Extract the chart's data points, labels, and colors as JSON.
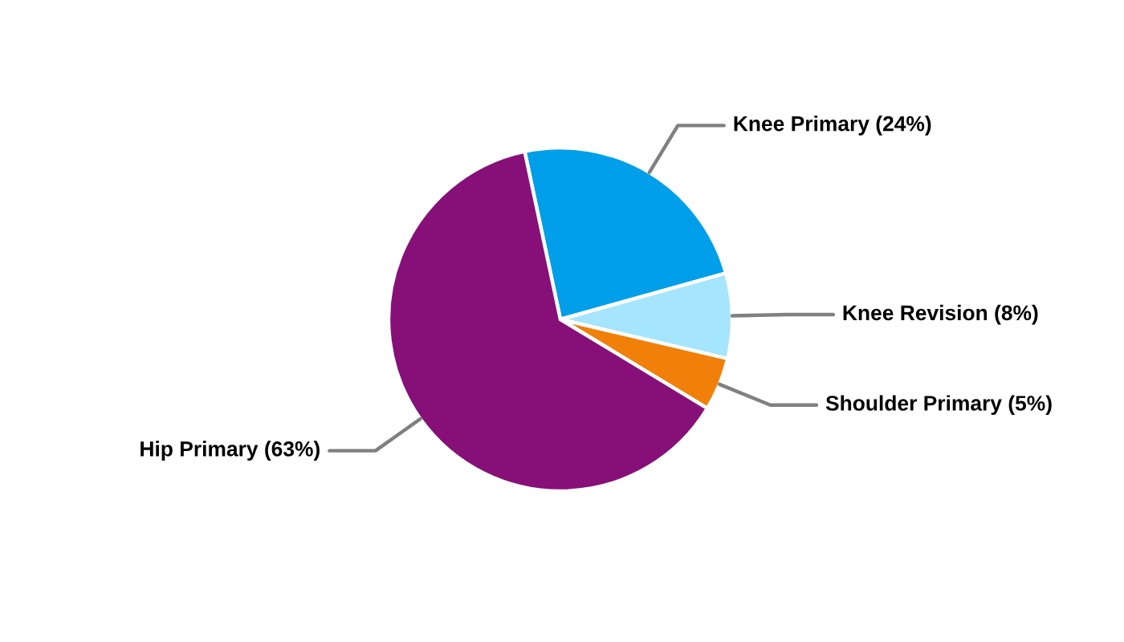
{
  "chart_data": {
    "type": "pie",
    "categories": [
      "Knee Primary",
      "Knee Revision",
      "Shoulder Primary",
      "Hip Primary"
    ],
    "values": [
      24,
      8,
      5,
      63
    ],
    "colors": [
      "#019fe9",
      "#a5e5fd",
      "#f0800a",
      "#861078"
    ],
    "value_labels": [
      "(24%)",
      "(8%)",
      "(5%)",
      "(63%)"
    ]
  }
}
